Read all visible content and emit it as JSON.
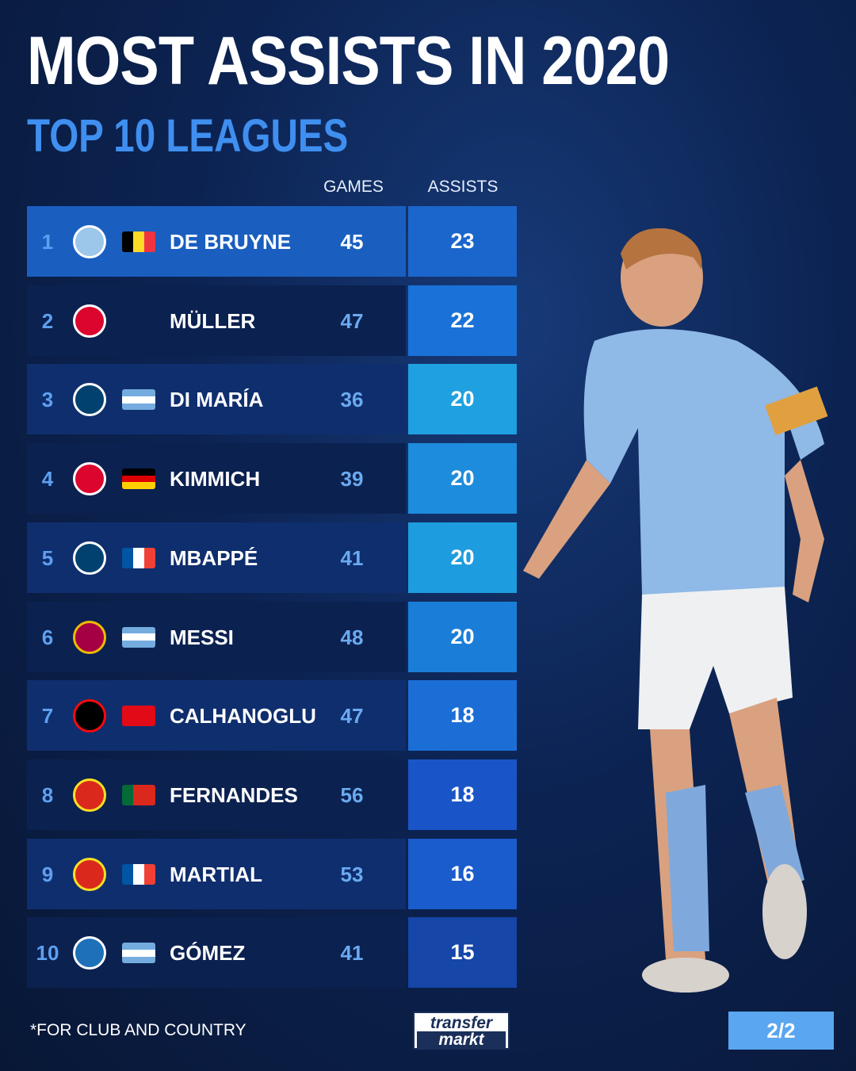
{
  "title": "MOST ASSISTS IN 2020",
  "subtitle": "TOP 10 LEAGUES",
  "footnote": "*FOR CLUB AND COUNTRY",
  "logo": {
    "line1": "transfer",
    "line2": "markt"
  },
  "page_indicator": "2/2",
  "chart_data": {
    "type": "table",
    "columns": [
      "GAMES",
      "ASSISTS"
    ],
    "rows": [
      {
        "rank": "1",
        "player": "DE BRUYNE",
        "club": "Manchester City",
        "nation": "Belgium",
        "games": 45,
        "assists": 23
      },
      {
        "rank": "2",
        "player": "MÜLLER",
        "club": "Bayern München",
        "nation": "",
        "games": 47,
        "assists": 22
      },
      {
        "rank": "3",
        "player": "DI MARÍA",
        "club": "Paris Saint-Germain",
        "nation": "Argentina",
        "games": 36,
        "assists": 20
      },
      {
        "rank": "4",
        "player": "KIMMICH",
        "club": "Bayern München",
        "nation": "Germany",
        "games": 39,
        "assists": 20
      },
      {
        "rank": "5",
        "player": "MBAPPÉ",
        "club": "Paris Saint-Germain",
        "nation": "France",
        "games": 41,
        "assists": 20
      },
      {
        "rank": "6",
        "player": "MESSI",
        "club": "FC Barcelona",
        "nation": "Argentina",
        "games": 48,
        "assists": 20
      },
      {
        "rank": "7",
        "player": "CALHANOGLU",
        "club": "AC Milan",
        "nation": "Turkey",
        "games": 47,
        "assists": 18
      },
      {
        "rank": "8",
        "player": "FERNANDES",
        "club": "Sporting CP / Manchester United",
        "nation": "Portugal",
        "games": 56,
        "assists": 18
      },
      {
        "rank": "9",
        "player": "MARTIAL",
        "club": "Manchester United",
        "nation": "France",
        "games": 53,
        "assists": 16
      },
      {
        "rank": "10",
        "player": "GÓMEZ",
        "club": "Atalanta",
        "nation": "Argentina",
        "games": 41,
        "assists": 15
      }
    ]
  }
}
